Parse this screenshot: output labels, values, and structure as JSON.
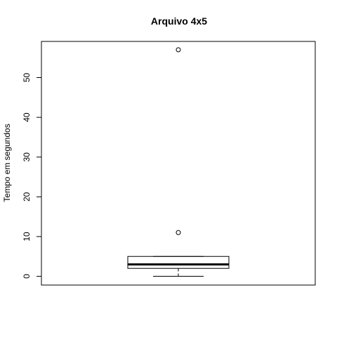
{
  "chart_data": {
    "type": "boxplot",
    "title": "Arquivo 4x5",
    "xlabel": "",
    "ylabel": "Tempo em segundos",
    "ylim": [
      -2.2,
      59.1
    ],
    "yticks": [
      0,
      10,
      20,
      30,
      40,
      50
    ],
    "grid": false,
    "box": {
      "whisker_low": 0,
      "q1": 2,
      "median": 3,
      "q3": 5,
      "whisker_high": 5
    },
    "outliers": [
      11,
      57
    ]
  }
}
